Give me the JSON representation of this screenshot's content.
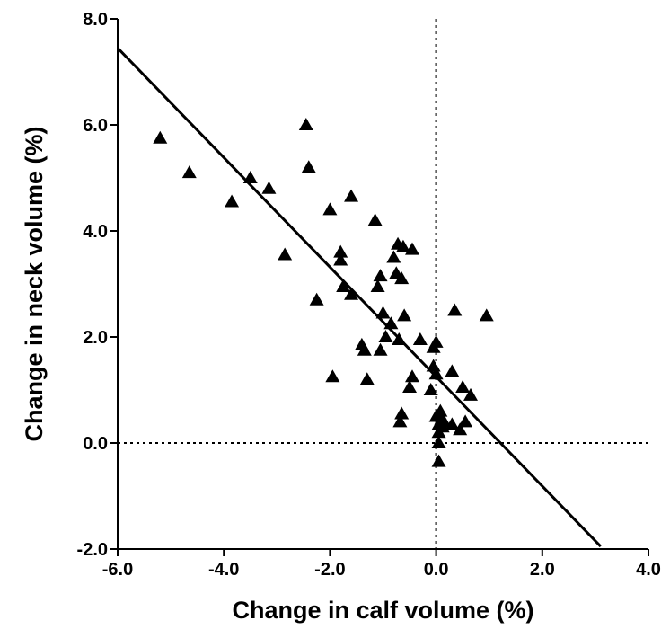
{
  "chart_data": {
    "type": "scatter",
    "title": "",
    "xlabel": "Change in calf volume (%)",
    "ylabel": "Change in neck volume (%)",
    "xlim": [
      -6.0,
      4.0
    ],
    "ylim": [
      -2.0,
      8.0
    ],
    "x_ticks": [
      "-6.0",
      "-4.0",
      "-2.0",
      "0.0",
      "2.0",
      "4.0"
    ],
    "y_ticks": [
      "-2.0",
      "0.0",
      "2.0",
      "4.0",
      "6.0",
      "8.0"
    ],
    "grid": false,
    "marker": "triangle",
    "reference_lines": [
      {
        "axis": "x",
        "value": 0.0,
        "style": "dotted"
      },
      {
        "axis": "y",
        "value": 0.0,
        "style": "dotted"
      }
    ],
    "regression_line": {
      "x": [
        -6.0,
        3.1
      ],
      "y": [
        7.45,
        -1.95
      ]
    },
    "points": [
      [
        -5.2,
        5.75
      ],
      [
        -4.65,
        5.1
      ],
      [
        -3.85,
        4.55
      ],
      [
        -3.5,
        5.0
      ],
      [
        -3.15,
        4.8
      ],
      [
        -2.85,
        3.55
      ],
      [
        -2.45,
        6.0
      ],
      [
        -2.4,
        5.2
      ],
      [
        -2.25,
        2.7
      ],
      [
        -2.0,
        4.4
      ],
      [
        -1.95,
        1.25
      ],
      [
        -1.8,
        3.6
      ],
      [
        -1.8,
        3.45
      ],
      [
        -1.75,
        2.95
      ],
      [
        -1.6,
        4.65
      ],
      [
        -1.6,
        2.8
      ],
      [
        -1.4,
        1.85
      ],
      [
        -1.35,
        1.75
      ],
      [
        -1.3,
        1.2
      ],
      [
        -1.15,
        4.2
      ],
      [
        -1.1,
        2.95
      ],
      [
        -1.05,
        3.15
      ],
      [
        -1.05,
        1.75
      ],
      [
        -1.0,
        2.45
      ],
      [
        -0.95,
        2.0
      ],
      [
        -0.85,
        2.25
      ],
      [
        -0.8,
        3.5
      ],
      [
        -0.75,
        3.2
      ],
      [
        -0.72,
        3.75
      ],
      [
        -0.7,
        1.95
      ],
      [
        -0.68,
        0.4
      ],
      [
        -0.65,
        0.55
      ],
      [
        -0.65,
        3.1
      ],
      [
        -0.62,
        3.7
      ],
      [
        -0.6,
        2.4
      ],
      [
        -0.5,
        1.05
      ],
      [
        -0.45,
        1.25
      ],
      [
        -0.45,
        3.65
      ],
      [
        -0.3,
        1.95
      ],
      [
        -0.1,
        1.0
      ],
      [
        -0.05,
        1.8
      ],
      [
        -0.05,
        1.45
      ],
      [
        0.0,
        1.9
      ],
      [
        0.0,
        1.3
      ],
      [
        0.0,
        0.5
      ],
      [
        0.05,
        0.35
      ],
      [
        0.05,
        0.2
      ],
      [
        0.05,
        0.0
      ],
      [
        0.05,
        -0.35
      ],
      [
        0.08,
        0.6
      ],
      [
        0.1,
        0.45
      ],
      [
        0.12,
        0.3
      ],
      [
        0.15,
        0.4
      ],
      [
        0.3,
        1.35
      ],
      [
        0.3,
        0.35
      ],
      [
        0.35,
        2.5
      ],
      [
        0.45,
        0.25
      ],
      [
        0.5,
        1.05
      ],
      [
        0.55,
        0.4
      ],
      [
        0.65,
        0.9
      ],
      [
        0.95,
        2.4
      ]
    ]
  }
}
